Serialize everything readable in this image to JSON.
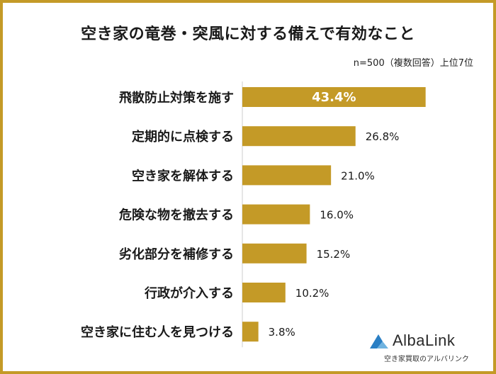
{
  "chart_data": {
    "type": "bar",
    "orientation": "horizontal",
    "title": "空き家の竜巻・突風に対する備えで有効なこと",
    "sample_note": "n=500（複数回答）上位7位",
    "categories": [
      "飛散防止対策を施す",
      "定期的に点検する",
      "空き家を解体する",
      "危険な物を撤去する",
      "劣化部分を補修する",
      "行政が介入する",
      "空き家に住む人を見つける"
    ],
    "values": [
      43.4,
      26.8,
      21.0,
      16.0,
      15.2,
      10.2,
      3.8
    ],
    "value_labels": [
      "43.4%",
      "26.8%",
      "21.0%",
      "16.0%",
      "15.2%",
      "10.2%",
      "3.8%"
    ],
    "unit": "%",
    "xlim": [
      0,
      50
    ],
    "grid": false
  },
  "colors": {
    "bar": "#c49a27",
    "frame": "#c49a27",
    "logo_blue": "#2a7fc4"
  },
  "logo": {
    "name": "AlbaLink",
    "tagline": "空き家買取のアルバリンク"
  }
}
